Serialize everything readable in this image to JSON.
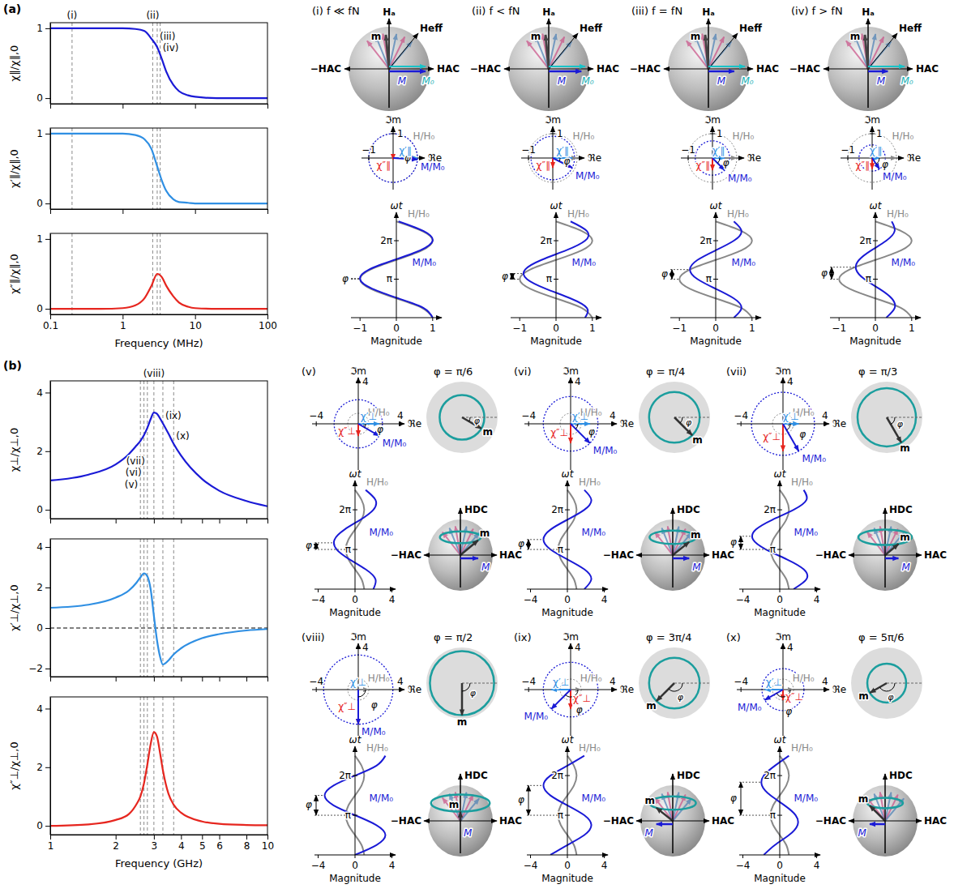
{
  "panel_labels": [
    "(a)",
    "(b)"
  ],
  "chart_data": [
    {
      "type": "line",
      "ylabel": "χ∥/χ∥,0",
      "x": [
        0.1,
        0.2,
        0.5,
        1,
        1.5,
        2,
        2.5,
        3,
        3.5,
        4,
        5,
        6,
        8,
        10,
        20,
        50,
        100
      ],
      "xlim": [
        0.1,
        100
      ],
      "xticks": [
        0.1,
        1,
        10,
        100
      ],
      "log": "x",
      "ylim": [
        -0.08,
        1.08
      ],
      "yticks": [
        0,
        1
      ],
      "tick_labels": "y",
      "series": [
        {
          "color": "#1a1ad6",
          "values": [
            1,
            1,
            1,
            1,
            0.99,
            0.96,
            0.85,
            0.73,
            0.55,
            0.38,
            0.19,
            0.1,
            0.04,
            0.02,
            0,
            0,
            0
          ]
        }
      ],
      "markers": [
        {
          "x": 0.2,
          "label": "(i)"
        },
        {
          "x": 2.6,
          "label": "(ii)"
        },
        {
          "x": 3.0,
          "y": 0.88,
          "label": "(iii)"
        },
        {
          "x": 3.3,
          "y": 0.72,
          "label": "(iv)"
        }
      ]
    },
    {
      "type": "line",
      "ylabel": "χ′∥/χ∥,0",
      "x": [
        0.1,
        0.2,
        0.5,
        1,
        1.5,
        2,
        2.5,
        3,
        3.5,
        4,
        5,
        6,
        8,
        10,
        20,
        50,
        100
      ],
      "xlim": [
        0.1,
        100
      ],
      "xticks": [
        0.1,
        1,
        10,
        100
      ],
      "log": "x",
      "ylim": [
        -0.08,
        1.08
      ],
      "yticks": [
        0,
        1
      ],
      "tick_labels": "y",
      "series": [
        {
          "color": "#2f8fe3",
          "values": [
            1,
            1,
            1,
            1,
            0.98,
            0.92,
            0.78,
            0.53,
            0.32,
            0.18,
            0.06,
            0.02,
            0.01,
            0,
            0,
            0,
            0
          ]
        }
      ],
      "markers": [
        {
          "x": 0.2
        },
        {
          "x": 2.6
        },
        {
          "x": 3.0
        },
        {
          "x": 3.3
        }
      ]
    },
    {
      "type": "line",
      "ylabel": "χ″∥/χ∥,0",
      "xlabel": "Frequency (MHz)",
      "x": [
        0.1,
        0.2,
        0.5,
        1,
        1.5,
        2,
        2.5,
        3,
        3.5,
        4,
        5,
        6,
        8,
        10,
        20,
        50,
        100
      ],
      "xlim": [
        0.1,
        100
      ],
      "xticks": [
        0.1,
        1,
        10,
        100
      ],
      "log": "x",
      "ylim": [
        -0.08,
        1.08
      ],
      "yticks": [
        0,
        1
      ],
      "series": [
        {
          "color": "#e6261f",
          "values": [
            0,
            0,
            0,
            0.01,
            0.05,
            0.15,
            0.33,
            0.5,
            0.45,
            0.33,
            0.18,
            0.09,
            0.03,
            0.01,
            0,
            0,
            0
          ]
        }
      ],
      "markers": [
        {
          "x": 0.2
        },
        {
          "x": 2.6
        },
        {
          "x": 3.0
        },
        {
          "x": 3.3
        }
      ]
    },
    {
      "type": "line",
      "ylabel": "χ⊥/χ⊥,0",
      "x": [
        1,
        1.5,
        2,
        2.3,
        2.5,
        2.6,
        2.7,
        2.8,
        2.9,
        3,
        3.1,
        3.2,
        3.3,
        3.5,
        3.7,
        4,
        5,
        6,
        8,
        10
      ],
      "xlim": [
        1,
        10
      ],
      "xticks": [
        1,
        2,
        3,
        4,
        5,
        6,
        8,
        10
      ],
      "log": "x",
      "ylim": [
        -0.3,
        4.4
      ],
      "yticks": [
        0,
        2,
        4
      ],
      "tick_labels": "y",
      "series": [
        {
          "color": "#1a1ad6",
          "values": [
            1,
            1.2,
            1.55,
            1.9,
            2.2,
            2.35,
            2.55,
            2.8,
            3.1,
            3.32,
            3.28,
            3.12,
            2.95,
            2.6,
            2.25,
            1.85,
            1.05,
            0.65,
            0.3,
            0.12
          ]
        }
      ],
      "markers": [
        {
          "x": 2.6,
          "y": 0.85,
          "label": "(v)"
        },
        {
          "x": 2.7,
          "y": 1.25,
          "label": "(vi)"
        },
        {
          "x": 2.8,
          "y": 1.65,
          "label": "(vii)"
        },
        {
          "x": 3.0,
          "label": "(viii)"
        },
        {
          "x": 3.3,
          "y": 3.2,
          "label": "(ix)"
        },
        {
          "x": 3.7,
          "y": 2.5,
          "label": "(x)"
        }
      ]
    },
    {
      "type": "line",
      "ylabel": "χ′⊥/χ⊥,0",
      "x": [
        1,
        1.5,
        2,
        2.3,
        2.5,
        2.6,
        2.7,
        2.8,
        2.9,
        3,
        3.1,
        3.2,
        3.3,
        3.5,
        3.7,
        4,
        5,
        6,
        8,
        10
      ],
      "xlim": [
        1,
        10
      ],
      "xticks": [
        1,
        2,
        3,
        4,
        5,
        6,
        8,
        10
      ],
      "log": "x",
      "ylim": [
        -2.4,
        4.4
      ],
      "yticks": [
        {
          "value": -2,
          "label": "−2"
        },
        0,
        2,
        4
      ],
      "tick_labels": "y",
      "series": [
        {
          "color": "#2f8fe3",
          "values": [
            1,
            1.15,
            1.5,
            1.85,
            2.25,
            2.5,
            2.7,
            2.55,
            1.9,
            0.6,
            -0.6,
            -1.4,
            -1.8,
            -1.6,
            -1.3,
            -1.0,
            -0.5,
            -0.3,
            -0.12,
            -0.05
          ]
        }
      ],
      "markers": [
        {
          "x": 2.6
        },
        {
          "x": 2.7
        },
        {
          "x": 2.8
        },
        {
          "x": 3.0
        },
        {
          "x": 3.3
        },
        {
          "x": 3.7
        }
      ],
      "hlines": [
        0
      ]
    },
    {
      "type": "line",
      "ylabel": "χ″⊥/χ⊥,0",
      "xlabel": "Frequency (GHz)",
      "x": [
        1,
        1.5,
        2,
        2.3,
        2.5,
        2.6,
        2.7,
        2.8,
        2.9,
        3,
        3.1,
        3.2,
        3.3,
        3.5,
        3.7,
        4,
        5,
        6,
        8,
        10
      ],
      "xlim": [
        1,
        10
      ],
      "xticks": [
        1,
        2,
        3,
        4,
        5,
        6,
        8,
        10
      ],
      "log": "x",
      "ylim": [
        -0.3,
        4.4
      ],
      "yticks": [
        0,
        2,
        4
      ],
      "series": [
        {
          "color": "#e6261f",
          "values": [
            0,
            0.05,
            0.2,
            0.4,
            0.75,
            1.0,
            1.45,
            2.1,
            2.8,
            3.2,
            3.05,
            2.5,
            1.9,
            1.1,
            0.72,
            0.45,
            0.15,
            0.07,
            0.03,
            0.02
          ]
        }
      ],
      "markers": [
        {
          "x": 2.6
        },
        {
          "x": 2.7
        },
        {
          "x": 2.8
        },
        {
          "x": 3.0
        },
        {
          "x": 3.3
        },
        {
          "x": 3.7
        }
      ]
    }
  ],
  "schematic": {
    "labels": {
      "h_a": "Hₐ",
      "m": "m",
      "h_eff": "Heff",
      "minus_h_ac": "−HAC",
      "h_ac": "HAC",
      "m_vec": "M",
      "m0": "M₀",
      "im": "ℑm",
      "re": "ℜe",
      "h_ratio": "H/H₀",
      "m_ratio": "M/M₀",
      "chi_p_par": "χ′∥",
      "chi_pp_par": "χ″∥",
      "chi_p_perp": "χ′⊥",
      "chi_pp_perp": "χ″⊥",
      "phi": "φ",
      "wt": "ωt",
      "magnitude": "Magnitude",
      "h_dc": "HDC"
    },
    "a": {
      "phasor_lim": [
        -1.3,
        1.3
      ],
      "phasor_ticks": {
        "re": [
          {
            "value": -1,
            "label": "−1"
          }
        ],
        "im": [
          1
        ]
      },
      "mag_lim": [
        -1.25,
        1.25
      ],
      "mag_ticks": [
        {
          "value": -1,
          "label": "−1"
        },
        0,
        1
      ],
      "wt_lim": [
        0,
        8.6
      ],
      "wt_ticks": [
        {
          "value": 3.1416,
          "label": "π"
        },
        {
          "value": 6.2832,
          "label": "2π"
        }
      ],
      "wt": [
        0,
        0.785,
        1.571,
        2.356,
        3.142,
        3.927,
        4.712,
        5.498,
        6.283,
        7.069,
        7.854
      ],
      "h": [
        1,
        0.71,
        0,
        -0.71,
        -1,
        -0.71,
        0,
        0.71,
        1,
        0.71,
        0
      ],
      "panels": [
        {
          "title": "(i) f ≪ fN",
          "phasor": [
            1,
            -0.06
          ],
          "phase": 0.06,
          "m": [
            1,
            0.75,
            0.06,
            -0.66,
            -1,
            -0.75,
            -0.06,
            0.66,
            1,
            0.75,
            0.06
          ]
        },
        {
          "title": "(ii) f < fN",
          "phasor": [
            0.8,
            -0.4
          ],
          "phase": 0.46,
          "m": [
            0.8,
            0.85,
            0.4,
            -0.28,
            -0.8,
            -0.85,
            -0.4,
            0.28,
            0.8,
            0.85,
            0.4
          ]
        },
        {
          "title": "(iii) f = fN",
          "phasor": [
            0.5,
            -0.5
          ],
          "phase": 0.785,
          "m": [
            0.5,
            0.71,
            0.5,
            0,
            -0.5,
            -0.71,
            -0.5,
            0,
            0.5,
            0.71,
            0.5
          ]
        },
        {
          "title": "(iv) f > fN",
          "phasor": [
            0.3,
            -0.45
          ],
          "phase": 0.98,
          "m": [
            0.3,
            0.53,
            0.45,
            0.11,
            -0.3,
            -0.53,
            -0.45,
            -0.11,
            0.3,
            0.53,
            0.45
          ]
        }
      ]
    },
    "b": {
      "phasor_lim": [
        -4.4,
        4.4
      ],
      "phasor_ticks": {
        "re": [
          {
            "value": -4,
            "label": "−4"
          },
          4
        ],
        "im": [
          4
        ]
      },
      "mag_lim": [
        -4.4,
        4.4
      ],
      "mag_ticks": [
        {
          "value": -4,
          "label": "−4"
        },
        0,
        4
      ],
      "wt_lim": [
        0,
        8.6
      ],
      "wt_ticks": [
        {
          "value": 3.1416,
          "label": "π"
        },
        {
          "value": 6.2832,
          "label": "2π"
        }
      ],
      "wt": [
        0,
        0.785,
        1.571,
        2.356,
        3.142,
        3.927,
        4.712,
        5.498,
        6.283,
        7.069,
        7.854
      ],
      "h": [
        1,
        0.71,
        0,
        -0.71,
        -1,
        -0.71,
        0,
        0.71,
        1,
        0.71,
        0
      ],
      "panels": [
        {
          "title": "(v)",
          "phase_label": "φ = π/6",
          "phasor": [
            1.99,
            -1.15
          ],
          "phase": 0.524,
          "m": [
            1.99,
            2.22,
            1.15,
            -0.59,
            -1.99,
            -2.22,
            -1.15,
            0.59,
            1.99,
            2.22,
            1.15
          ]
        },
        {
          "title": "(vi)",
          "phase_label": "φ = π/4",
          "phasor": [
            1.84,
            -1.84
          ],
          "phase": 0.785,
          "m": [
            1.84,
            2.6,
            1.84,
            0,
            -1.84,
            -2.6,
            -1.84,
            0,
            1.84,
            2.6,
            1.84
          ]
        },
        {
          "title": "(vii)",
          "phase_label": "φ = π/3",
          "phasor": [
            1.5,
            -2.6
          ],
          "phase": 1.047,
          "m": [
            1.5,
            2.9,
            2.6,
            0.78,
            -1.5,
            -2.9,
            -2.6,
            -0.78,
            1.5,
            2.9,
            2.6
          ]
        },
        {
          "title": "(viii)",
          "phase_label": "φ = π/2",
          "phasor": [
            0,
            -3.3
          ],
          "phase": 1.571,
          "m": [
            0,
            2.33,
            3.3,
            2.33,
            0,
            -2.33,
            -3.3,
            -2.33,
            0,
            2.33,
            3.3
          ]
        },
        {
          "title": "(ix)",
          "phase_label": "φ = 3π/4",
          "phasor": [
            -1.84,
            -1.84
          ],
          "phase": 2.356,
          "m": [
            -1.84,
            0,
            1.84,
            2.6,
            1.84,
            0,
            -1.84,
            -2.6,
            -1.84,
            0,
            1.84
          ]
        },
        {
          "title": "(x)",
          "phase_label": "φ = 5π/6",
          "phasor": [
            -1.73,
            -1.0
          ],
          "phase": 2.618,
          "m": [
            -1.73,
            -0.52,
            1,
            1.93,
            1.73,
            0.52,
            -1,
            -1.93,
            -1.73,
            -0.52,
            1
          ]
        }
      ]
    }
  }
}
